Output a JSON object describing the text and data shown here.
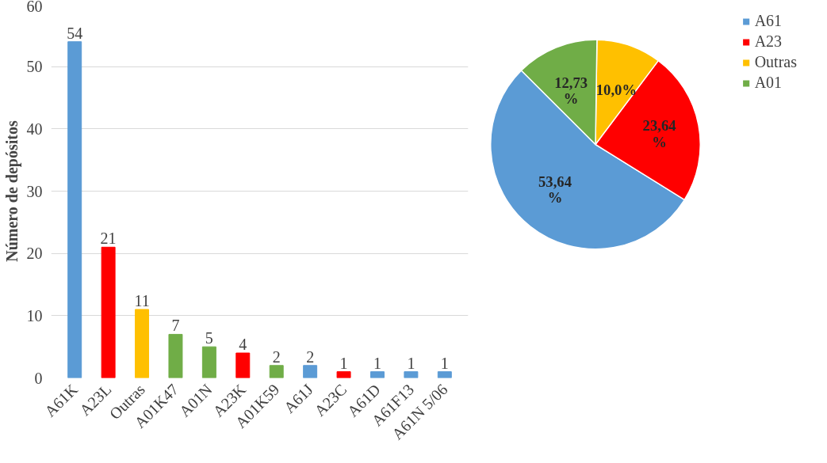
{
  "chart_data": [
    {
      "type": "bar",
      "ylabel": "Número de depósitos",
      "categories": [
        "A61K",
        "A23L",
        "Outras",
        "A01K47",
        "A01N",
        "A23K",
        "A01K59",
        "A61J",
        "A23C",
        "A61D",
        "A61F13",
        "A61N 5/06"
      ],
      "values": [
        54,
        21,
        11,
        7,
        5,
        4,
        2,
        2,
        1,
        1,
        1,
        1
      ],
      "colors": [
        "#5b9bd5",
        "#ff0000",
        "#ffc000",
        "#70ad47",
        "#70ad47",
        "#ff0000",
        "#70ad47",
        "#5b9bd5",
        "#ff0000",
        "#5b9bd5",
        "#5b9bd5",
        "#5b9bd5"
      ],
      "ylim": [
        0,
        60
      ],
      "yticks": [
        0,
        10,
        20,
        30,
        40,
        50,
        60
      ],
      "grid": "y",
      "data_labels": true
    },
    {
      "type": "pie",
      "categories": [
        "A61",
        "A23",
        "Outras",
        "A01"
      ],
      "values": [
        53.64,
        23.64,
        10.0,
        12.73
      ],
      "value_labels": [
        "53,64 %",
        "23,64 %",
        "10,0%",
        "12,73 %"
      ],
      "colors": [
        "#5b9bd5",
        "#ff0000",
        "#ffc000",
        "#70ad47"
      ],
      "legend": "right"
    }
  ]
}
